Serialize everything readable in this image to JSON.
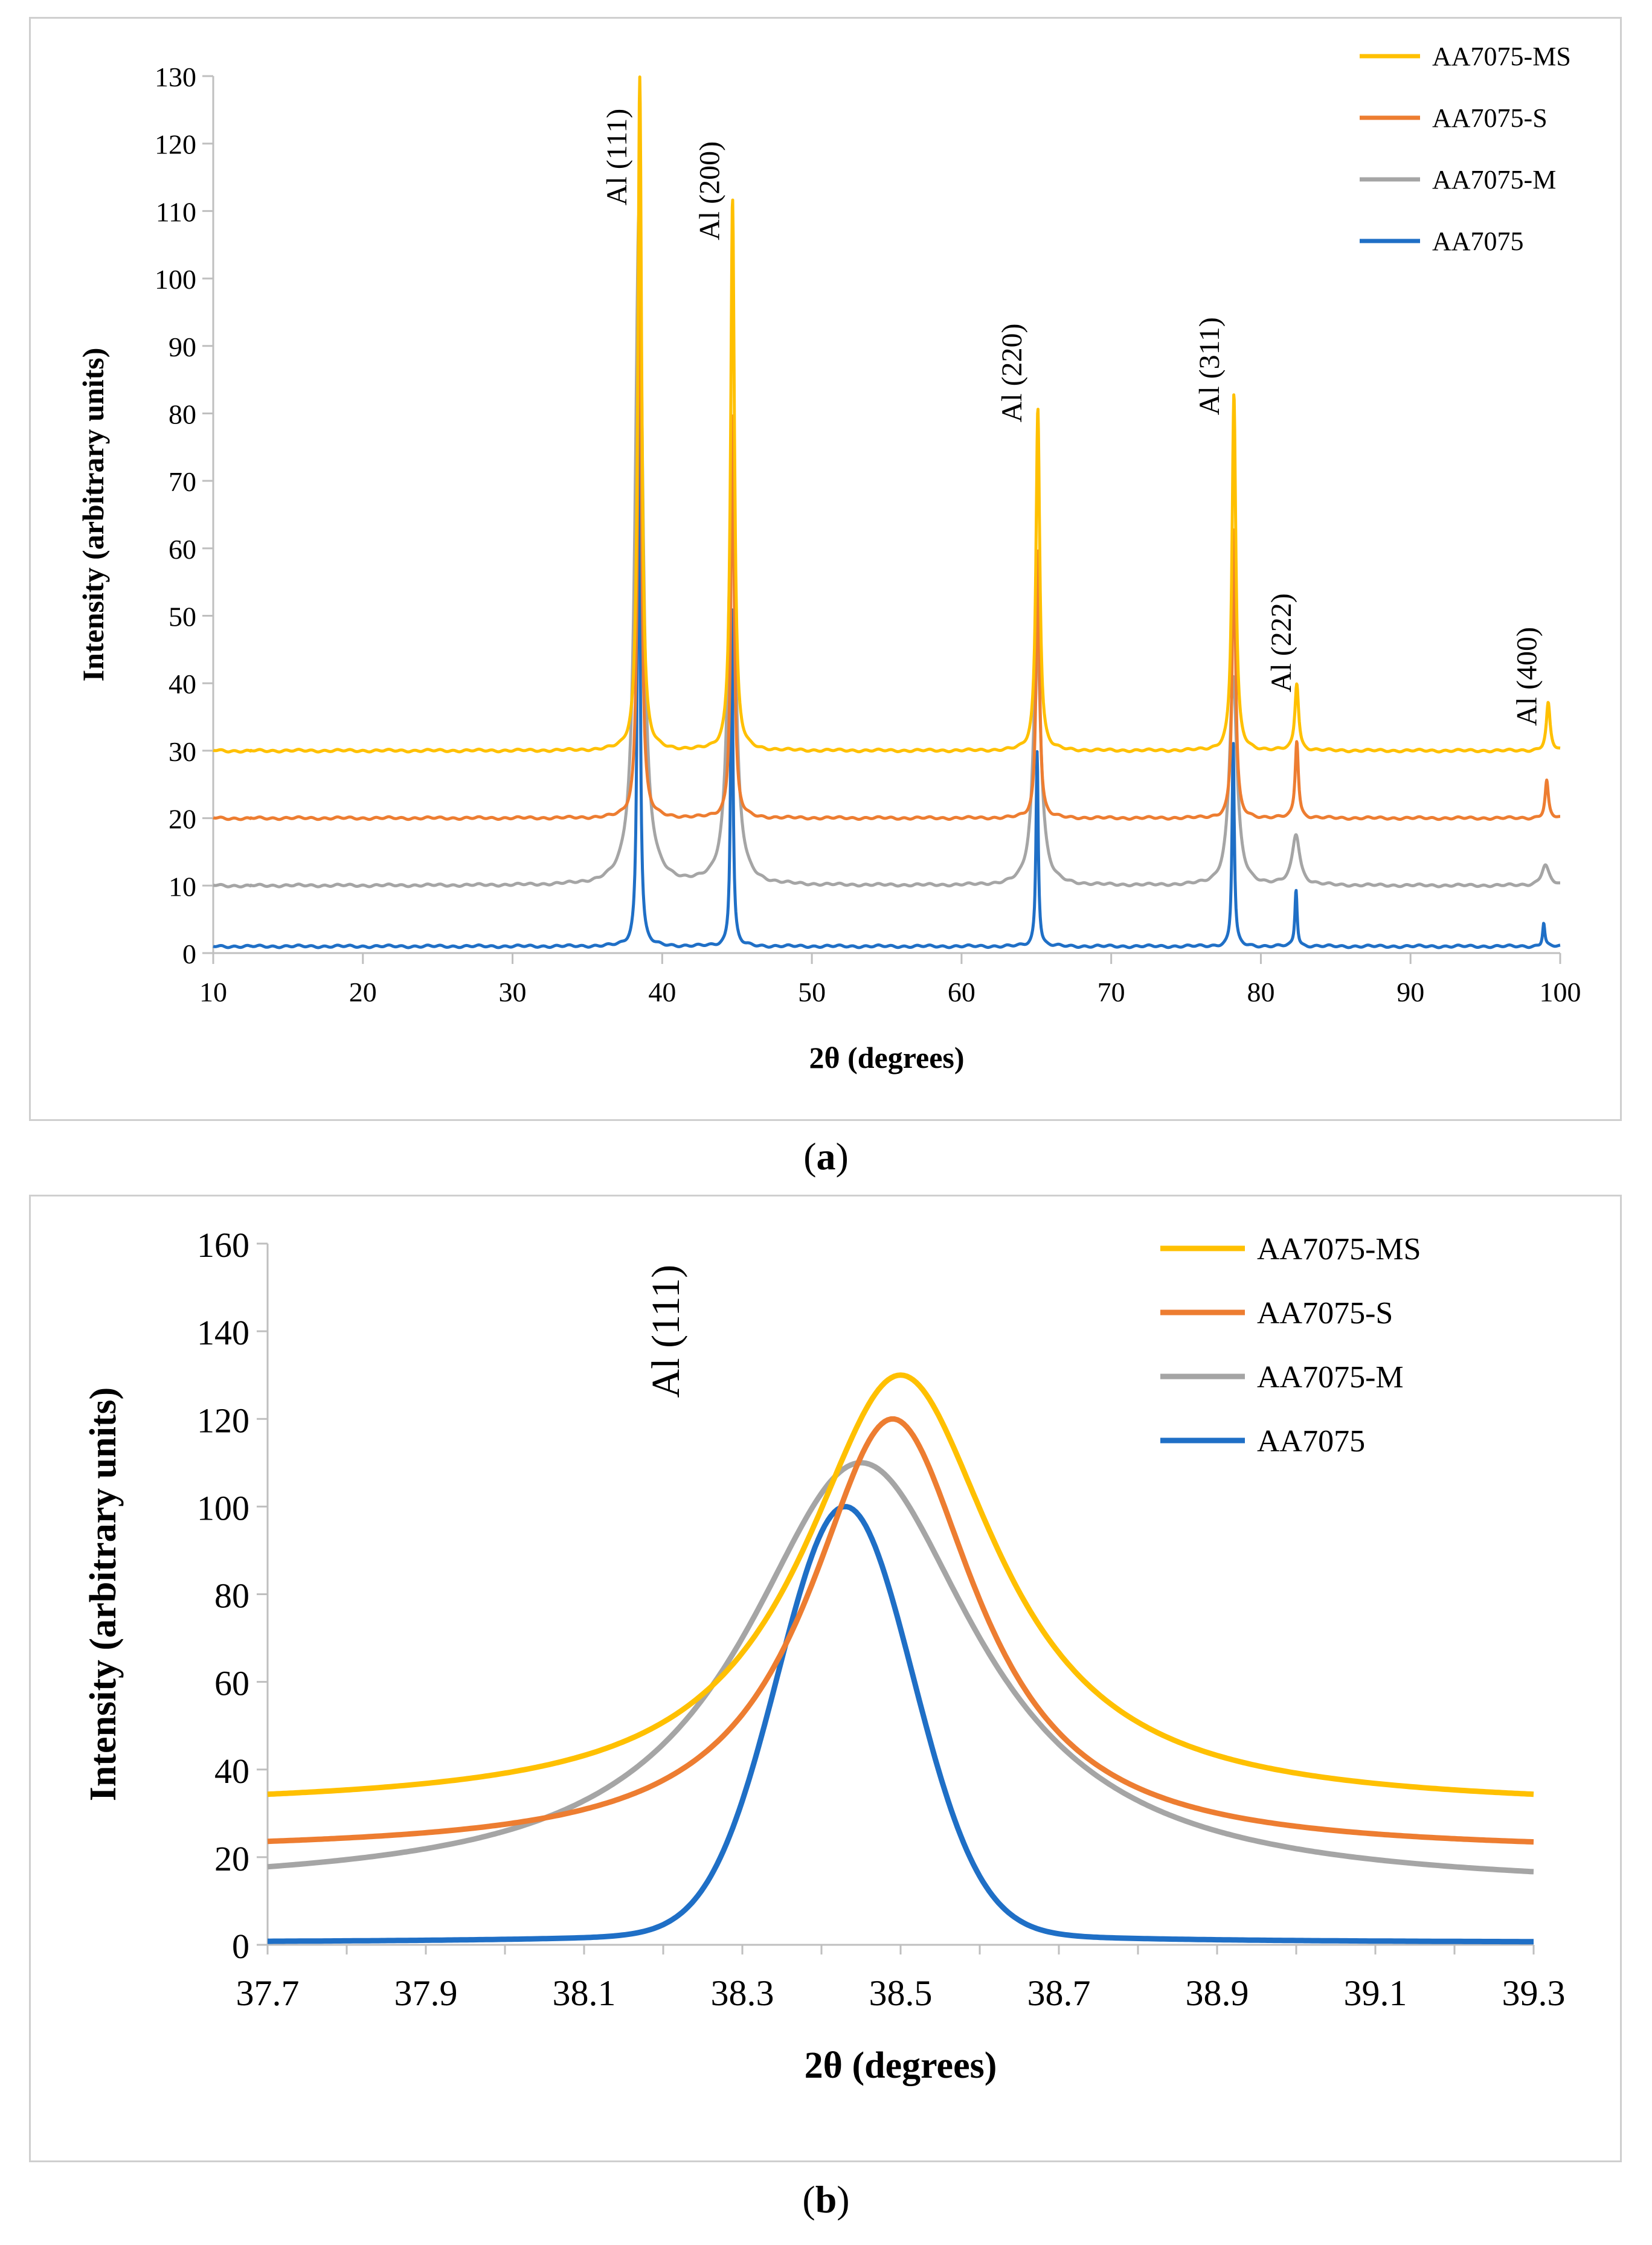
{
  "captions": {
    "a_letter": "a",
    "b_letter": "b"
  },
  "chart_data": [
    {
      "id": "a",
      "type": "line",
      "title": "",
      "xlabel": "2θ (degrees)",
      "ylabel": "Intensity (arbitrary units)",
      "xlim": [
        10,
        100
      ],
      "ylim": [
        0,
        130
      ],
      "xticks": [
        10,
        20,
        30,
        40,
        50,
        60,
        70,
        80,
        90,
        100
      ],
      "yticks": [
        0,
        10,
        20,
        30,
        40,
        50,
        60,
        70,
        80,
        90,
        100,
        110,
        120,
        130
      ],
      "legend_position": "top-right",
      "series": [
        {
          "name": "AA7075-MS",
          "color": "#ffc000",
          "baseline": 30,
          "width": 0.15,
          "peaks": [
            {
              "x": 38.5,
              "y": 130
            },
            {
              "x": 44.7,
              "y": 112
            },
            {
              "x": 65.1,
              "y": 81
            },
            {
              "x": 78.2,
              "y": 83
            },
            {
              "x": 82.4,
              "y": 40
            },
            {
              "x": 99.2,
              "y": 37
            }
          ]
        },
        {
          "name": "AA7075-S",
          "color": "#ed7d31",
          "baseline": 20,
          "width": 0.13,
          "peaks": [
            {
              "x": 38.49,
              "y": 120
            },
            {
              "x": 44.7,
              "y": 80
            },
            {
              "x": 65.1,
              "y": 60
            },
            {
              "x": 78.2,
              "y": 63
            },
            {
              "x": 82.4,
              "y": 31.5
            },
            {
              "x": 99.1,
              "y": 25.5
            }
          ]
        },
        {
          "name": "AA7075-M",
          "color": "#a5a5a5",
          "baseline": 10,
          "width": 0.3,
          "peaks": [
            {
              "x": 38.45,
              "y": 110
            },
            {
              "x": 44.65,
              "y": 69
            },
            {
              "x": 65.05,
              "y": 47
            },
            {
              "x": 78.15,
              "y": 41
            },
            {
              "x": 82.35,
              "y": 17.5
            },
            {
              "x": 99.0,
              "y": 13
            }
          ]
        },
        {
          "name": "AA7075",
          "color": "#1f6fc6",
          "baseline": 1,
          "width": 0.09,
          "peaks": [
            {
              "x": 38.43,
              "y": 101
            },
            {
              "x": 44.65,
              "y": 51
            },
            {
              "x": 65.05,
              "y": 30
            },
            {
              "x": 78.15,
              "y": 31.5
            },
            {
              "x": 82.35,
              "y": 9.5
            },
            {
              "x": 98.9,
              "y": 4.5
            }
          ]
        }
      ],
      "annotations": [
        {
          "text": "Al (111)",
          "x": 37.6,
          "y": 118
        },
        {
          "text": "Al (200)",
          "x": 43.8,
          "y": 113
        },
        {
          "text": "Al (220)",
          "x": 64.0,
          "y": 86
        },
        {
          "text": "Al (311)",
          "x": 77.2,
          "y": 87
        },
        {
          "text": "Al (222)",
          "x": 82.0,
          "y": 46
        },
        {
          "text": "Al (400)",
          "x": 98.4,
          "y": 41
        }
      ]
    },
    {
      "id": "b",
      "type": "line",
      "title": "",
      "xlabel": "2θ (degrees)",
      "ylabel": "Intensity (arbitrary units)",
      "xlim": [
        37.7,
        39.3
      ],
      "ylim": [
        0,
        160
      ],
      "xticks": [
        "37.7",
        "37.9",
        "38.1",
        "38.3",
        "38.5",
        "38.7",
        "38.9",
        "39.1",
        "39.3"
      ],
      "yticks": [
        0,
        20,
        40,
        60,
        80,
        100,
        120,
        140,
        160
      ],
      "legend_position": "top-right",
      "series": [
        {
          "name": "AA7075-MS",
          "color": "#ffc000",
          "baseline": 31,
          "peak_x": 38.5,
          "peak_y": 130,
          "width": 0.15
        },
        {
          "name": "AA7075-S",
          "color": "#ed7d31",
          "baseline": 21,
          "peak_x": 38.49,
          "peak_y": 120,
          "width": 0.13
        },
        {
          "name": "AA7075-M",
          "color": "#a5a5a5",
          "baseline": 12.5,
          "peak_x": 38.45,
          "peak_y": 110,
          "width": 0.18
        },
        {
          "name": "AA7075",
          "color": "#1f6fc6",
          "baseline": 0.5,
          "peak_x": 38.43,
          "peak_y": 100,
          "width": 0.09
        }
      ],
      "annotations": [
        {
          "text": "Al (111)",
          "x": 38.22,
          "y": 140
        }
      ]
    }
  ]
}
